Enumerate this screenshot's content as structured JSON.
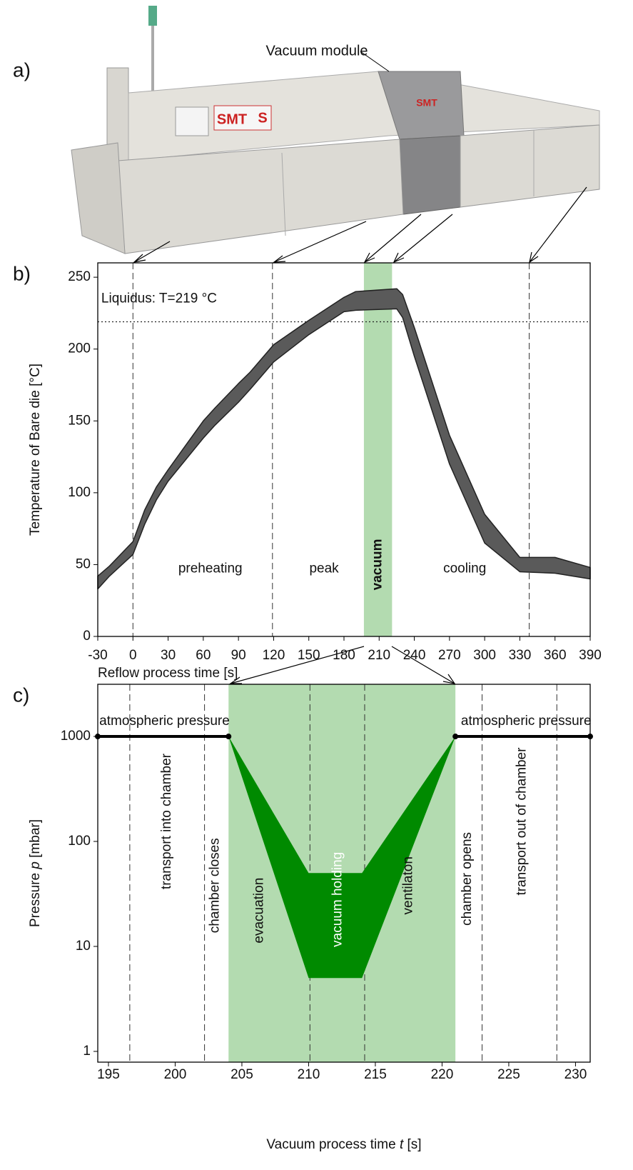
{
  "panels": {
    "a": "a)",
    "b": "b)",
    "c": "c)"
  },
  "photo": {
    "label": "Vacuum module",
    "logos": [
      "SMT",
      "S",
      "SMT"
    ]
  },
  "chart_data": [
    {
      "type": "band",
      "color": "#5a5a5a",
      "edge": "#222222",
      "x_label": "Reflow process time [s]",
      "y_label": "Temperature of Bare die [°C]",
      "x": [
        -30,
        -20,
        0,
        10,
        20,
        30,
        60,
        70,
        90,
        100,
        120,
        150,
        180,
        190,
        225,
        230,
        240,
        270,
        300,
        330,
        360,
        390
      ],
      "lower": [
        33,
        42,
        57,
        78,
        95,
        108,
        138,
        147,
        163,
        172,
        191,
        210,
        226,
        227,
        228,
        222,
        195,
        120,
        65,
        45,
        44,
        40
      ],
      "upper": [
        42,
        49,
        66,
        88,
        104,
        116,
        150,
        159,
        176,
        184,
        203,
        220,
        236,
        240,
        242,
        238,
        215,
        140,
        85,
        55,
        55,
        48
      ],
      "xlim": [
        -30,
        390
      ],
      "ylim": [
        0,
        260
      ],
      "xticks": [
        -30,
        0,
        30,
        60,
        90,
        120,
        150,
        180,
        210,
        240,
        270,
        300,
        330,
        360,
        390
      ],
      "yticks": [
        0,
        50,
        100,
        150,
        200,
        250
      ],
      "regions": [
        [
          197,
          221
        ]
      ],
      "region_color": "#b3dbb0",
      "dividers": [
        0,
        119,
        338
      ],
      "hline": 219,
      "annotations": [
        {
          "text": "Liquidus: T=219 °C",
          "x": -27,
          "y": 235,
          "align": "start"
        },
        {
          "text": "preheating",
          "x": 66,
          "y": 47
        },
        {
          "text": "peak",
          "x": 163,
          "y": 47
        },
        {
          "text": "vacuum",
          "x": 209,
          "y": 50,
          "rotate": -90,
          "bold": true
        },
        {
          "text": "cooling",
          "x": 283,
          "y": 47
        }
      ]
    },
    {
      "type": "band",
      "color": "#008a00",
      "yscale": "log",
      "x_label": [
        "Vacuum process time ",
        "t",
        " [s]"
      ],
      "y_label": [
        "Pressure ",
        "p",
        " [mbar]"
      ],
      "x": [
        204,
        210,
        214,
        221
      ],
      "lower": [
        1000,
        5,
        5,
        1000
      ],
      "upper": [
        1000,
        50,
        50,
        1000
      ],
      "lines": [
        {
          "color": "#000000",
          "x": [
            194.2,
            204
          ],
          "values": [
            1000,
            1000
          ]
        },
        {
          "color": "#000000",
          "x": [
            221,
            231.1
          ],
          "values": [
            1000,
            1000
          ]
        }
      ],
      "xlim": [
        194.2,
        231.1
      ],
      "ylim": [
        0.79,
        3140
      ],
      "xticks": [
        195,
        200,
        205,
        210,
        215,
        220,
        225,
        230
      ],
      "yticks": [
        1,
        10,
        100,
        1000
      ],
      "regions": [
        [
          204,
          221
        ]
      ],
      "region_color": "#b3dbb0",
      "dividers": [
        196.6,
        202.2,
        210.1,
        214.2,
        223,
        228.6
      ],
      "annotations": [
        {
          "text": "atmospheric pressure",
          "x": 199.2,
          "y": 1390
        },
        {
          "text": "atmospheric pressure",
          "x": 226.3,
          "y": 1390
        },
        {
          "text": "transport into chamber",
          "x": 199.4,
          "y": 155,
          "rotate": -90
        },
        {
          "text": "chamber closes",
          "x": 203,
          "y": 38,
          "rotate": -90
        },
        {
          "text": "evacuation",
          "x": 206.3,
          "y": 22,
          "rotate": -90
        },
        {
          "text": "vacuum holding",
          "x": 212.2,
          "y": 28,
          "rotate": -90,
          "color": "#ffffff"
        },
        {
          "text": "ventilaton",
          "x": 217.5,
          "y": 38,
          "rotate": -90
        },
        {
          "text": "chamber opens",
          "x": 221.9,
          "y": 44,
          "rotate": -90
        },
        {
          "text": "transport out of chamber",
          "x": 226,
          "y": 155,
          "rotate": -90
        }
      ]
    }
  ]
}
